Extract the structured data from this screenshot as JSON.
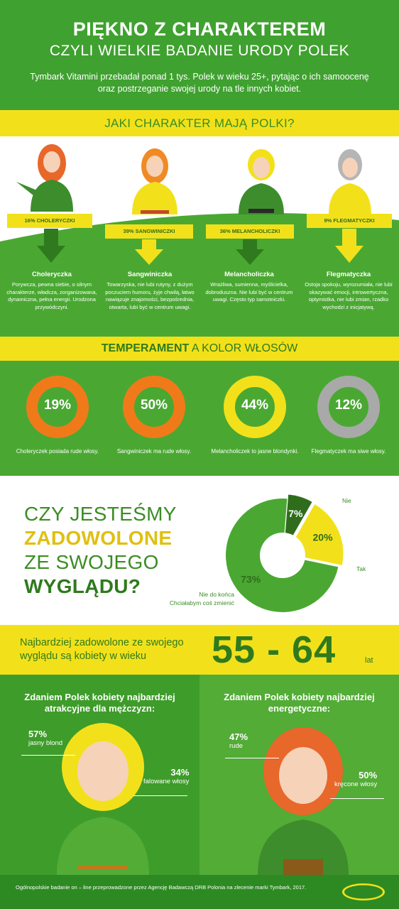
{
  "header": {
    "title": "PIĘKNO Z CHARAKTEREM",
    "subtitle": "CZYLI WIELKIE BADANIE URODY POLEK",
    "intro": "Tymbark Vitamini przebadał ponad 1 tys. Polek w wieku 25+, pytając o ich samoocenę oraz postrzeganie swojej urody na tle innych kobiet."
  },
  "character_question": "JAKI CHARAKTER MAJĄ POLKI?",
  "characters": [
    {
      "ribbon": "16% CHOLERYCZKI",
      "name": "Choleryczka",
      "desc": "Porywcza, pewna siebie, o silnym charakterze, władcza, zorganizowana, dynamiczna, pełna energii. Urodzona przywódczyni."
    },
    {
      "ribbon": "39% SANGWINICZKI",
      "name": "Sangwiniczka",
      "desc": "Towarzyska, nie lubi rutyny, z dużym poczuciem humoru, żyje chwilą, łatwo nawiązuje znajomości, bezpośrednia, otwarta, lubi być w centrum uwagi."
    },
    {
      "ribbon": "36% MELANCHOLICZKI",
      "name": "Melancholiczka",
      "desc": "Wrażliwa, sumienna, myślicielka, dobroduszna. Nie lubi być w centrum uwagi. Często typ samotniczki."
    },
    {
      "ribbon": "9% FLEGMATYCZKI",
      "name": "Flegmatyczka",
      "desc": "Ostoja spokoju, wyrozumiała, nie lubi okazywać emocji, introwertyczna, optymistka, nie lubi zmian, rzadko wychodzi z inicjatywą."
    }
  ],
  "temperament": {
    "title_bold": "TEMPERAMENT",
    "title_rest": " A KOLOR WŁOSÓW",
    "items": [
      {
        "pct": "19%",
        "value": 19,
        "color": "#f07a1a",
        "caption": "Choleryczek posiada rude włosy."
      },
      {
        "pct": "50%",
        "value": 50,
        "color": "#f07a1a",
        "caption": "Sangwiniczek ma rude włosy."
      },
      {
        "pct": "44%",
        "value": 44,
        "color": "#f2e11a",
        "caption": "Melancholiczek to jasne blondynki."
      },
      {
        "pct": "12%",
        "value": 12,
        "color": "#a9a9a9",
        "caption": "Flegmatyczek ma siwe włosy."
      }
    ]
  },
  "satisfaction": {
    "line1": "CZY JESTEŚMY",
    "line2": "ZADOWOLONE",
    "line3": "ZE SWOJEGO",
    "line4": "WYGLĄDU?",
    "chart_data": {
      "type": "pie",
      "slices": [
        {
          "label": "Nie",
          "value": 7,
          "display": "7%",
          "color": "#2f6d1c"
        },
        {
          "label": "Tak",
          "value": 20,
          "display": "20%",
          "color": "#f2e11a"
        },
        {
          "label": "Nie do końca Chciałabym coś zmienić",
          "value": 73,
          "display": "73%",
          "color": "#4aa832"
        }
      ]
    },
    "label_nie": "Nie",
    "label_tak": "Tak",
    "label_rest_1": "Nie do końca",
    "label_rest_2": "Chciałabym coś zmienić"
  },
  "age": {
    "text": "Najbardziej zadowolone ze swojego wyglądu są kobiety w wieku",
    "range": "55 - 64",
    "unit": "lat"
  },
  "left_panel": {
    "title": "Zdaniem Polek kobiety najbardziej atrakcyjne dla mężczyzn:",
    "stat1_value": "57%",
    "stat1_caption": "jasny blond",
    "stat2_value": "34%",
    "stat2_caption": "falowane włosy"
  },
  "right_panel": {
    "title": "Zdaniem Polek kobiety najbardziej energetyczne:",
    "stat1_value": "47%",
    "stat1_caption": "rude",
    "stat2_value": "50%",
    "stat2_caption": "kręcone włosy"
  },
  "footer": {
    "text": "Ogólnopolskie badanie on – line przeprowadzone przez Agencję Badawczą DRB Polonia na zlecenie marki Tymbark, 2017.",
    "logo": "TYMBARK"
  }
}
